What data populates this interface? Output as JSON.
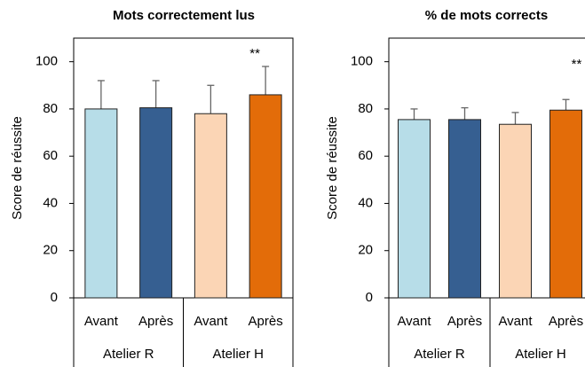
{
  "chart_data": [
    {
      "type": "bar",
      "title": "Mots correctement lus",
      "ylabel": "Score de réussite",
      "categories": [
        "Avant",
        "Après",
        "Avant",
        "Après"
      ],
      "group_labels": [
        "Atelier R",
        "Atelier H"
      ],
      "values": [
        80,
        80.5,
        78,
        86
      ],
      "errors": [
        12,
        11.5,
        12,
        12
      ],
      "colors": [
        "#b7dde8",
        "#365f91",
        "#fbd5b5",
        "#e36c09"
      ],
      "annotations": [
        {
          "text": "**",
          "category": 3
        }
      ],
      "ylim": [
        0,
        110
      ],
      "yticks": [
        0,
        20,
        40,
        60,
        80,
        100
      ]
    },
    {
      "type": "bar",
      "title": "% de mots corrects",
      "ylabel": "Score de réussite",
      "categories": [
        "Avant",
        "Après",
        "Avant",
        "Après"
      ],
      "group_labels": [
        "Atelier R",
        "Atelier H"
      ],
      "values": [
        75.5,
        75.5,
        73.5,
        79.5
      ],
      "errors": [
        4.5,
        5,
        5,
        4.5
      ],
      "colors": [
        "#b7dde8",
        "#365f91",
        "#fbd5b5",
        "#e36c09"
      ],
      "annotations": [
        {
          "text": "**",
          "category": 3
        }
      ],
      "ylim": [
        0,
        110
      ],
      "yticks": [
        0,
        20,
        40,
        60,
        80,
        100
      ]
    }
  ]
}
